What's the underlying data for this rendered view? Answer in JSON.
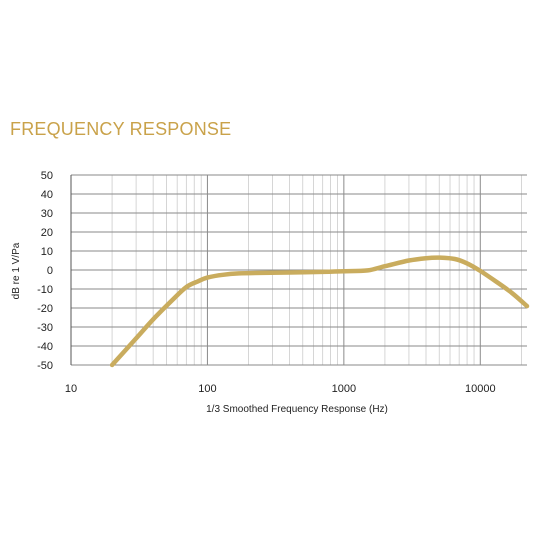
{
  "chart_data": {
    "type": "line",
    "title": "FREQUENCY RESPONSE",
    "xlabel": "1/3 Smoothed Frequency Response (Hz)",
    "ylabel": "dB re 1 V/Pa",
    "xscale": "log",
    "xlim": [
      10,
      22000
    ],
    "ylim": [
      -50,
      50
    ],
    "xticks": [
      10,
      100,
      1000,
      10000
    ],
    "yticks": [
      50,
      40,
      30,
      20,
      10,
      0,
      -10,
      -20,
      -30,
      -40,
      -50
    ],
    "grid": true,
    "line_color": "#c9ac5e",
    "title_color": "#c9a24a",
    "series": [
      {
        "x": [
          20,
          30,
          40,
          55,
          70,
          85,
          100,
          130,
          170,
          250,
          400,
          700,
          1000,
          1500,
          2000,
          3000,
          4000,
          5000,
          6500,
          8000,
          10000,
          13000,
          17000,
          22000
        ],
        "y": [
          -50,
          -36,
          -26,
          -16,
          -9,
          -6,
          -4,
          -2.5,
          -1.8,
          -1.5,
          -1.3,
          -1,
          -0.7,
          -0.2,
          2,
          5,
          6.2,
          6.5,
          5.8,
          3.5,
          -0.5,
          -6,
          -12,
          -19
        ]
      }
    ]
  }
}
